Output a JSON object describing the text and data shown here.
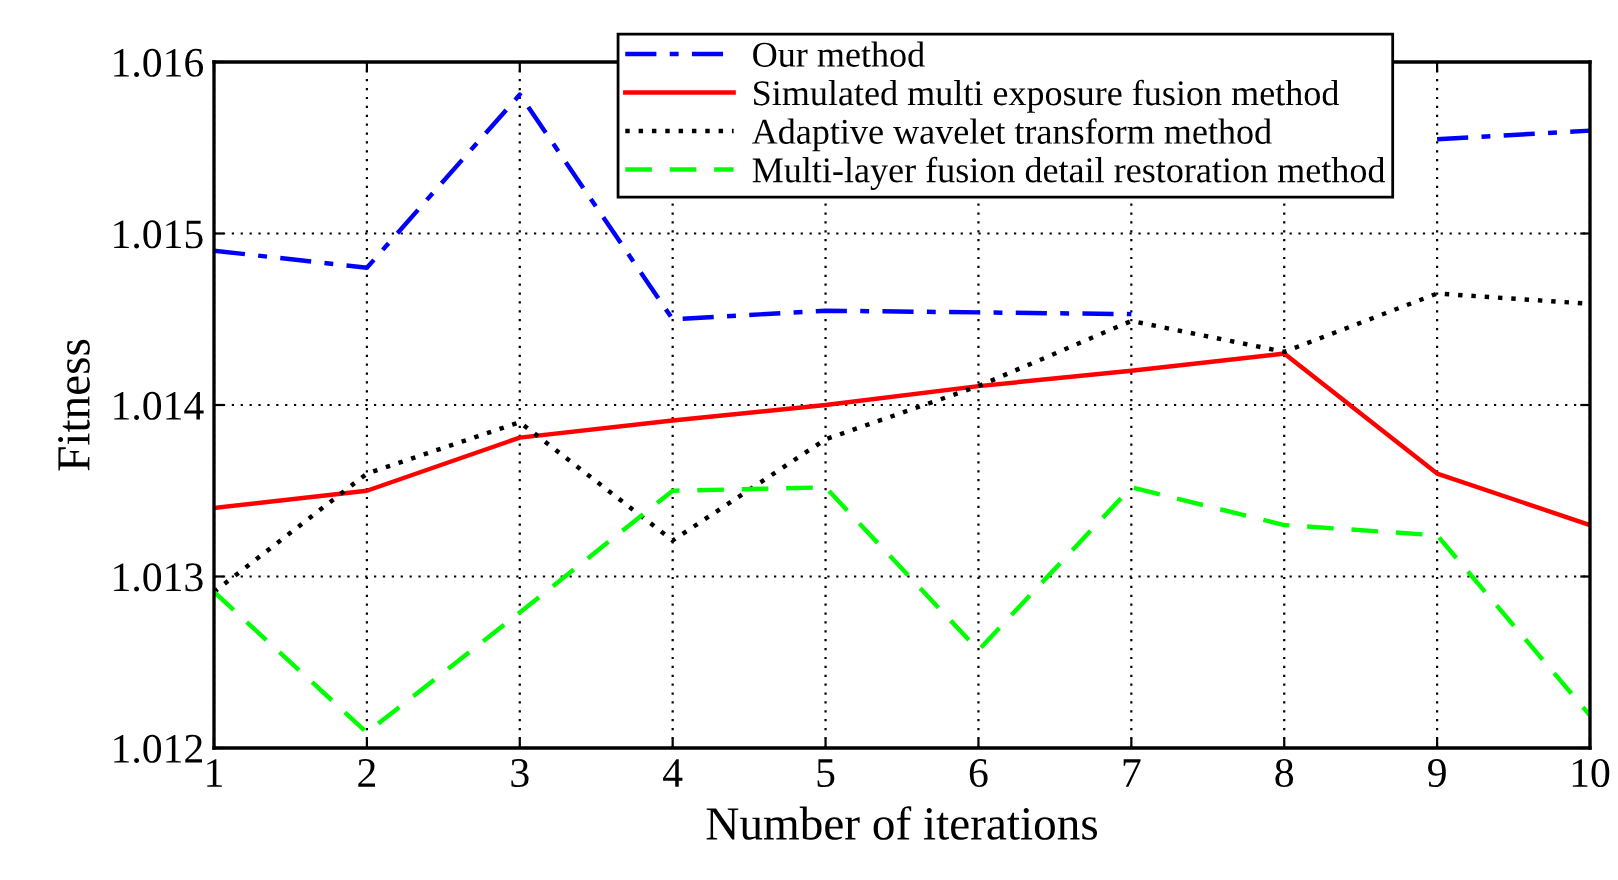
{
  "chart_data": {
    "type": "line",
    "xlabel": "Number of iterations",
    "ylabel": "Fitness",
    "x": [
      1,
      2,
      3,
      4,
      5,
      6,
      7,
      8,
      9,
      10
    ],
    "xlim": [
      1,
      10
    ],
    "xticks": [
      1,
      2,
      3,
      4,
      5,
      6,
      7,
      8,
      9,
      10
    ],
    "ylim": [
      1.012,
      1.016
    ],
    "yticks": [
      {
        "value": 1.012,
        "label": "1.012"
      },
      {
        "value": 1.013,
        "label": "1.013"
      },
      {
        "value": 1.014,
        "label": "1.014"
      },
      {
        "value": 1.015,
        "label": "1.015"
      },
      {
        "value": 1.016,
        "label": "1.016"
      }
    ],
    "grid": true,
    "legend": "top right",
    "series": [
      {
        "name": "Our method",
        "color": "#0000ff",
        "line_style": "dashdot",
        "values": [
          1.0149,
          1.0148,
          1.01581,
          1.0145,
          1.01455,
          1.01454,
          1.01453,
          null,
          1.01555,
          1.0156
        ]
      },
      {
        "name": "Simulated multi exposure fusion method",
        "color": "#ff0000",
        "line_style": "solid",
        "values": [
          1.0134,
          1.0135,
          1.01381,
          1.01391,
          1.014,
          1.01411,
          1.0142,
          1.0143,
          1.0136,
          1.0133
        ]
      },
      {
        "name": "Adaptive wavelet transform method",
        "color": "#000000",
        "line_style": "dotted",
        "values": [
          1.01291,
          1.0136,
          1.0139,
          1.01321,
          1.0138,
          1.01411,
          1.01449,
          1.01431,
          1.01465,
          1.01459
        ]
      },
      {
        "name": "Multi-layer fusion detail restoration method",
        "color": "#00ff00",
        "line_style": "dashed",
        "values": [
          1.01291,
          1.01209,
          1.01279,
          1.0135,
          1.01352,
          1.01257,
          1.01352,
          1.0133,
          1.01324,
          1.01219
        ]
      }
    ]
  }
}
